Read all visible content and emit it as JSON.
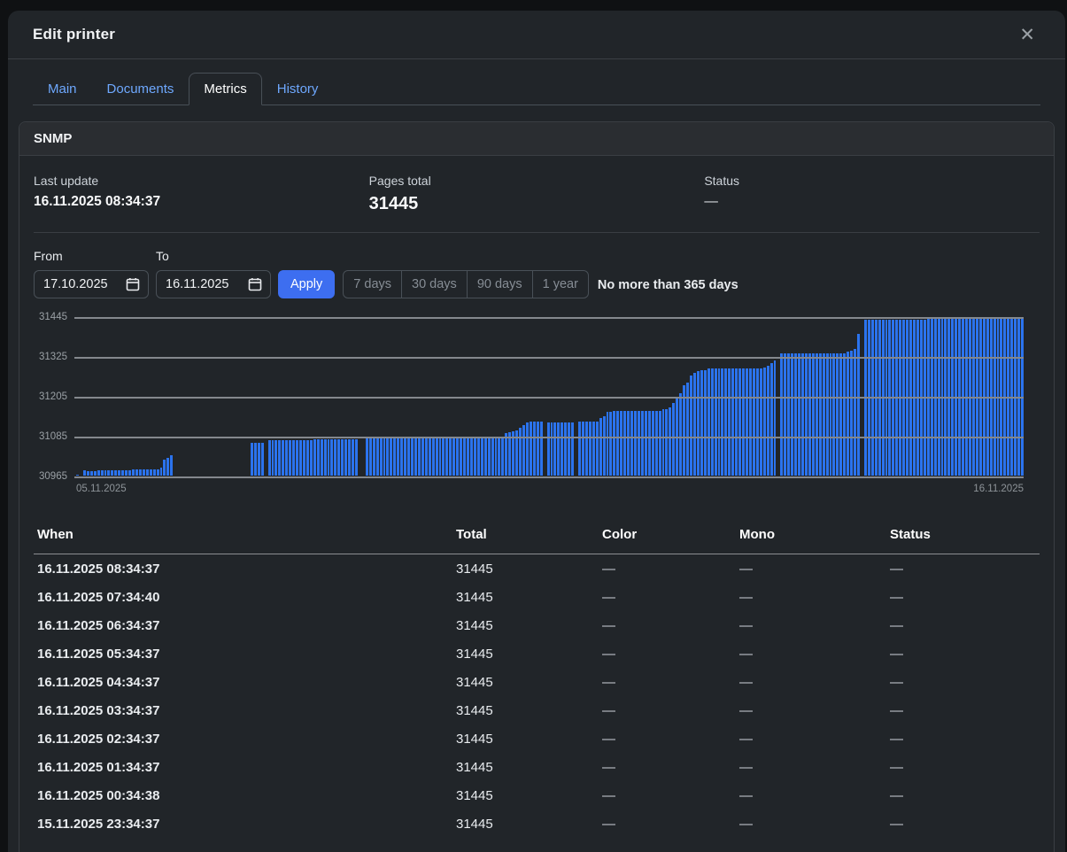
{
  "modal": {
    "title": "Edit printer",
    "close_icon": "✕"
  },
  "tabs": [
    {
      "label": "Main",
      "active": false
    },
    {
      "label": "Documents",
      "active": false
    },
    {
      "label": "Metrics",
      "active": true
    },
    {
      "label": "History",
      "active": false
    }
  ],
  "snmp": {
    "section_title": "SNMP",
    "stats": [
      {
        "label": "Last update",
        "value": "16.11.2025 08:34:37",
        "style": "normal"
      },
      {
        "label": "Pages total",
        "value": "31445",
        "style": "big"
      },
      {
        "label": "Status",
        "value": "—",
        "style": "dash"
      }
    ],
    "filters": {
      "from_label": "From",
      "from_value": "17.10.2025",
      "to_label": "To",
      "to_value": "16.11.2025",
      "apply_label": "Apply",
      "quick_ranges": [
        "7 days",
        "30 days",
        "90 days",
        "1 year"
      ],
      "hint": "No more than 365 days"
    }
  },
  "chart_data": {
    "type": "bar",
    "title": "",
    "xlabel": "",
    "ylabel": "",
    "ylim": [
      30965,
      31445
    ],
    "y_ticks": [
      31445,
      31325,
      31205,
      31085,
      30965
    ],
    "x_start_label": "05.11.2025",
    "x_end_label": "16.11.2025",
    "grid": true,
    "legend": false,
    "bar_color": "#2b73ee",
    "values": [
      30968,
      null,
      30980,
      30978,
      30979,
      30979,
      30980,
      30980,
      30980,
      30981,
      30981,
      30981,
      30982,
      30982,
      30982,
      30982,
      30983,
      30983,
      30983,
      30983,
      30984,
      30984,
      30984,
      30984,
      30990,
      31013,
      31020,
      31027,
      null,
      null,
      null,
      null,
      null,
      null,
      null,
      null,
      null,
      null,
      null,
      null,
      null,
      null,
      null,
      null,
      null,
      null,
      null,
      null,
      null,
      null,
      31064,
      31065,
      31065,
      31066,
      null,
      31074,
      31074,
      31074,
      31074,
      31074,
      31074,
      31074,
      31074,
      31074,
      31074,
      31074,
      31074,
      31074,
      31075,
      31075,
      31075,
      31075,
      31075,
      31075,
      31075,
      31075,
      31075,
      31075,
      31075,
      31075,
      31075,
      null,
      null,
      31079,
      31079,
      31079,
      31079,
      31079,
      31079,
      31079,
      31079,
      31079,
      31079,
      31079,
      31079,
      31079,
      31079,
      31079,
      31079,
      31079,
      31079,
      31079,
      31079,
      31079,
      31079,
      31079,
      31079,
      31079,
      31079,
      31079,
      31079,
      31079,
      31079,
      31079,
      31079,
      31079,
      31079,
      31079,
      31079,
      31079,
      31079,
      31079,
      31079,
      31095,
      31098,
      31100,
      31103,
      31110,
      31120,
      31127,
      31130,
      31130,
      31130,
      31130,
      null,
      31128,
      31128,
      31128,
      31128,
      31128,
      31128,
      31128,
      31128,
      null,
      31130,
      31130,
      31130,
      31130,
      31130,
      31130,
      31140,
      31145,
      31158,
      31160,
      31162,
      31162,
      31163,
      31163,
      31163,
      31163,
      31163,
      31163,
      31163,
      31163,
      31163,
      31163,
      31163,
      31163,
      31166,
      31168,
      31172,
      31185,
      31200,
      31215,
      31240,
      31247,
      31270,
      31277,
      31283,
      31285,
      31286,
      31290,
      31290,
      31290,
      31290,
      31290,
      31290,
      31290,
      31290,
      31290,
      31290,
      31290,
      31290,
      31290,
      31290,
      31291,
      31292,
      31295,
      31300,
      31308,
      31315,
      null,
      31338,
      31338,
      31338,
      31338,
      31338,
      31338,
      31338,
      31338,
      31338,
      31338,
      31338,
      31338,
      31338,
      31338,
      31338,
      31338,
      31338,
      31338,
      31338,
      31342,
      31346,
      31352,
      31396,
      null,
      31440,
      31440,
      31440,
      31440,
      31440,
      31440,
      31440,
      31440,
      31440,
      31440,
      31440,
      31440,
      31440,
      31440,
      31440,
      31440,
      31440,
      31440,
      31445,
      31445,
      31445,
      31445,
      31445,
      31445,
      31445,
      31445,
      31445,
      31445,
      31445,
      31445,
      31445,
      31445,
      31445,
      31445,
      31445,
      31445,
      31445,
      31445,
      31445,
      31445,
      31445,
      31445,
      31445,
      31445,
      31445,
      31445
    ]
  },
  "table": {
    "columns": [
      "When",
      "Total",
      "Color",
      "Mono",
      "Status"
    ],
    "rows": [
      [
        "16.11.2025 08:34:37",
        "31445",
        "—",
        "—",
        "—"
      ],
      [
        "16.11.2025 07:34:40",
        "31445",
        "—",
        "—",
        "—"
      ],
      [
        "16.11.2025 06:34:37",
        "31445",
        "—",
        "—",
        "—"
      ],
      [
        "16.11.2025 05:34:37",
        "31445",
        "—",
        "—",
        "—"
      ],
      [
        "16.11.2025 04:34:37",
        "31445",
        "—",
        "—",
        "—"
      ],
      [
        "16.11.2025 03:34:37",
        "31445",
        "—",
        "—",
        "—"
      ],
      [
        "16.11.2025 02:34:37",
        "31445",
        "—",
        "—",
        "—"
      ],
      [
        "16.11.2025 01:34:37",
        "31445",
        "—",
        "—",
        "—"
      ],
      [
        "16.11.2025 00:34:38",
        "31445",
        "—",
        "—",
        "—"
      ],
      [
        "15.11.2025 23:34:37",
        "31445",
        "—",
        "—",
        "—"
      ]
    ]
  },
  "colors": {
    "backdrop": "#0f1113",
    "modal_bg": "#212529",
    "card_header_bg": "#2a2d31",
    "border": "#3a3e43",
    "tab_link": "#6ea8fe",
    "accent_button": "#3d6ef0",
    "bar": "#2b73ee",
    "gridline": "#84888d"
  }
}
